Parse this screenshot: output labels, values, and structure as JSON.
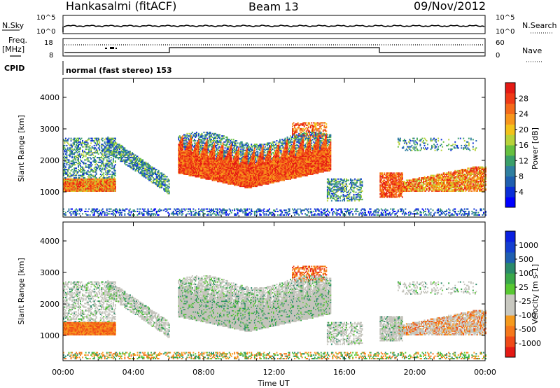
{
  "header": {
    "station": "Hankasalmi (fitACF)",
    "beam": "Beam 13",
    "date": "09/Nov/2012"
  },
  "top_panels": {
    "nsky_label": "N.Sky",
    "nsky_scale_top": "10^5",
    "nsky_scale_bottom": "10^0",
    "nsearch_label": "N.Search",
    "nsearch_scale_top": "10^5",
    "nsearch_scale_bottom": "10^0",
    "freq_label": "Freq.",
    "freq_unit": "[MHz]",
    "freq_ticks": [
      "18",
      "8"
    ],
    "nave_label": "Nave",
    "nave_ticks": [
      "60",
      "0"
    ],
    "cpid_label": "CPID",
    "cpid_value": "normal (fast stereo) 153"
  },
  "chart_data": [
    {
      "type": "heatmap",
      "panel": "power",
      "ylabel": "Slant Range [km]",
      "yticks": [
        1000,
        2000,
        3000,
        4000
      ],
      "ylim": [
        200,
        4600
      ],
      "xlim": [
        0,
        24
      ],
      "colorbar": {
        "label": "Power [dB]",
        "ticks": [
          "28",
          "24",
          "20",
          "16",
          "12",
          "8",
          "4"
        ],
        "colors": [
          "#0000ff",
          "#0b2fd6",
          "#1f5fb0",
          "#2f7fa0",
          "#3a9f6a",
          "#66c040",
          "#b8d23a",
          "#f2c21a",
          "#f7961c",
          "#f46a1a",
          "#ef3a16",
          "#e41a14"
        ]
      }
    },
    {
      "type": "heatmap",
      "panel": "velocity",
      "ylabel": "Slant Range [km]",
      "yticks": [
        1000,
        2000,
        3000,
        4000
      ],
      "ylim": [
        200,
        4600
      ],
      "xlim": [
        0,
        24
      ],
      "xticks": [
        "00:00",
        "04:00",
        "08:00",
        "12:00",
        "16:00",
        "20:00",
        "00:00"
      ],
      "xlabel": "Time UT",
      "colorbar": {
        "label": "Velocity [m s-1]",
        "ticks": [
          "1000",
          "500",
          "100",
          "25",
          "-25",
          "-100",
          "-500",
          "-1000"
        ],
        "colors": [
          "#e41a14",
          "#ef4a18",
          "#f5781c",
          "#f59a1e",
          "#c8c8c0",
          "#c8c8c0",
          "#58c832",
          "#3aa84a",
          "#2a8a6a",
          "#1f5fb0",
          "#143fd0",
          "#0a20e0"
        ]
      }
    }
  ],
  "colors": {
    "frame": "#000000",
    "background": "#ffffff",
    "ground_scatter": "#c4c4bc"
  }
}
